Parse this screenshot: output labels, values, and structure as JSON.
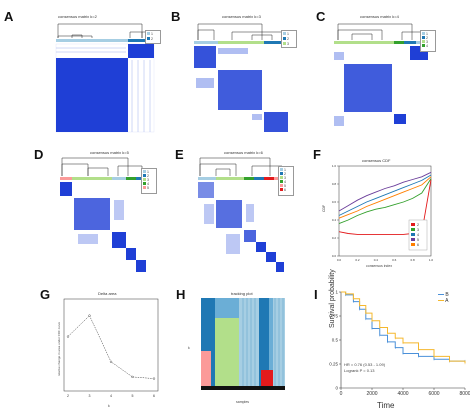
{
  "panels": {
    "A": {
      "label": "A",
      "title": "consensus matrix k=2",
      "legend": [
        "1",
        "2"
      ]
    },
    "B": {
      "label": "B",
      "title": "consensus matrix k=3",
      "legend": [
        "1",
        "2",
        "3"
      ]
    },
    "C": {
      "label": "C",
      "title": "consensus matrix k=4",
      "legend": [
        "1",
        "2",
        "3",
        "4"
      ]
    },
    "D": {
      "label": "D",
      "title": "consensus matrix k=5",
      "legend": [
        "1",
        "2",
        "3",
        "4",
        "5"
      ]
    },
    "E": {
      "label": "E",
      "title": "consensus matrix k=6",
      "legend": [
        "1",
        "2",
        "3",
        "4",
        "5",
        "6"
      ]
    },
    "F": {
      "label": "F",
      "title": "consensus CDF",
      "xlabel": "consensus index",
      "ylabel": "CDF"
    },
    "G": {
      "label": "G",
      "title": "Delta area",
      "ylabel": "relative change in area under CDF curve",
      "xlabel": "k"
    },
    "H": {
      "label": "H",
      "title": "tracking plot",
      "xlabel": "samples",
      "ylabel": "k"
    },
    "I": {
      "label": "I",
      "ylabel": "Survival probability",
      "xlabel": "Time",
      "legend": [
        "B",
        "A"
      ],
      "hr": "HR = 0.76 (0.53 - 1.09)",
      "logrank": "Logrank P = 0.13"
    }
  },
  "colors": {
    "matrix_blue": "#1f3fd6",
    "cluster1": "#a6cee3",
    "cluster2": "#1f78b4",
    "cluster3": "#b2df8a",
    "cluster4": "#33a02c",
    "cluster5": "#fb9a99",
    "cluster6": "#e31a1c",
    "km_B": "#4a90d9",
    "km_A": "#f5b82e"
  },
  "chart_data": [
    {
      "type": "line",
      "panel": "F",
      "title": "consensus CDF",
      "xlabel": "consensus index",
      "ylabel": "CDF",
      "xlim": [
        0,
        1
      ],
      "ylim": [
        0,
        1
      ],
      "x": [
        0,
        0.1,
        0.2,
        0.3,
        0.4,
        0.5,
        0.6,
        0.7,
        0.8,
        0.9,
        1.0
      ],
      "series": [
        {
          "name": "2",
          "color": "#e31a1c",
          "values": [
            0.27,
            0.25,
            0.24,
            0.24,
            0.24,
            0.24,
            0.24,
            0.24,
            0.25,
            0.26,
            0.85
          ]
        },
        {
          "name": "3",
          "color": "#33a02c",
          "values": [
            0.36,
            0.4,
            0.45,
            0.49,
            0.52,
            0.54,
            0.57,
            0.6,
            0.64,
            0.7,
            0.86
          ]
        },
        {
          "name": "4",
          "color": "#1f78b4",
          "values": [
            0.45,
            0.5,
            0.55,
            0.6,
            0.64,
            0.68,
            0.72,
            0.76,
            0.8,
            0.84,
            0.9
          ]
        },
        {
          "name": "5",
          "color": "#6a3d9a",
          "values": [
            0.5,
            0.56,
            0.62,
            0.67,
            0.71,
            0.75,
            0.78,
            0.82,
            0.85,
            0.88,
            0.93
          ]
        },
        {
          "name": "6",
          "color": "#ff7f00",
          "values": [
            0.42,
            0.46,
            0.5,
            0.55,
            0.59,
            0.63,
            0.67,
            0.71,
            0.75,
            0.79,
            0.88
          ]
        }
      ]
    },
    {
      "type": "line",
      "panel": "G",
      "title": "Delta area",
      "xlabel": "k",
      "ylabel": "relative change in area under CDF curve",
      "x": [
        2,
        3,
        4,
        5,
        6
      ],
      "values": [
        0.6,
        0.85,
        0.3,
        0.12,
        0.1
      ],
      "ylim": [
        0,
        1
      ]
    },
    {
      "type": "line",
      "panel": "I",
      "xlabel": "Time",
      "ylabel": "Survival probability",
      "xlim": [
        0,
        8000
      ],
      "ylim": [
        0,
        1
      ],
      "xticks": [
        0,
        2000,
        4000,
        6000,
        8000
      ],
      "yticks": [
        0,
        0.25,
        0.5,
        0.75,
        1
      ],
      "series": [
        {
          "name": "B",
          "color": "#4a90d9",
          "x": [
            0,
            300,
            800,
            1200,
            1600,
            2000,
            2500,
            3000,
            3500,
            4000,
            5000,
            6000,
            7000,
            8000
          ],
          "values": [
            1,
            0.97,
            0.9,
            0.82,
            0.72,
            0.62,
            0.55,
            0.48,
            0.42,
            0.36,
            0.33,
            0.3,
            0.28,
            0.28
          ]
        },
        {
          "name": "A",
          "color": "#f5b82e",
          "x": [
            0,
            300,
            800,
            1200,
            1600,
            2000,
            2500,
            3000,
            3500,
            4000,
            5000,
            6000,
            7000,
            8000
          ],
          "values": [
            1,
            0.98,
            0.93,
            0.86,
            0.78,
            0.7,
            0.63,
            0.57,
            0.52,
            0.47,
            0.4,
            0.33,
            0.28,
            0.26
          ]
        }
      ],
      "annotations": [
        "HR = 0.76 (0.53 - 1.09)",
        "Logrank P = 0.13"
      ]
    }
  ]
}
